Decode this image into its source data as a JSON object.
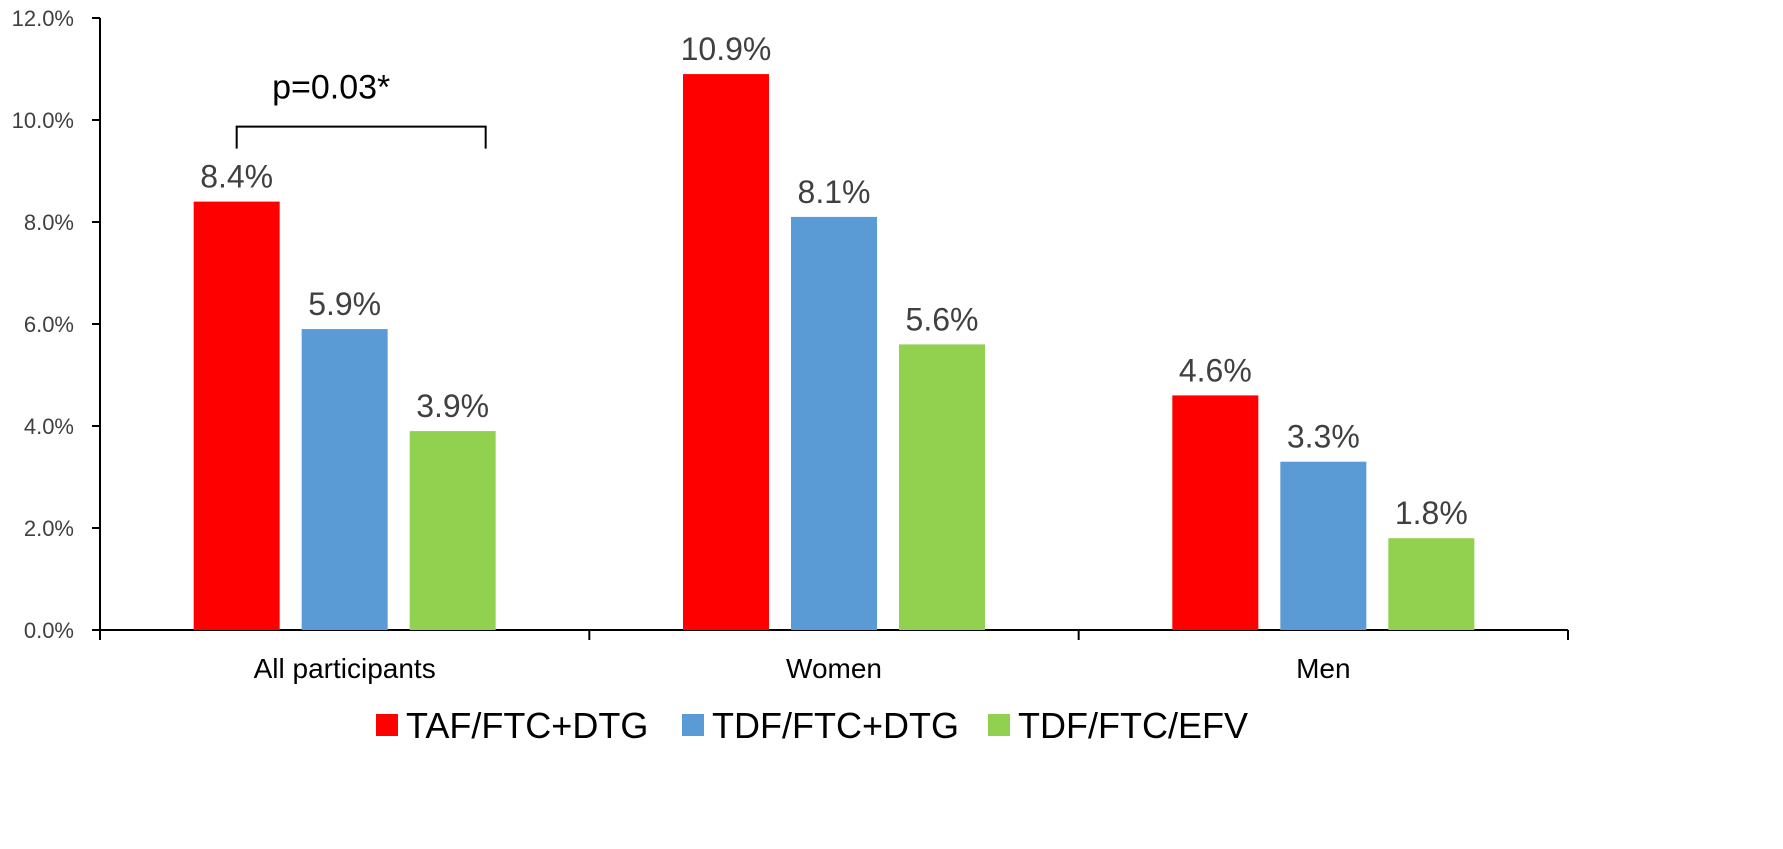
{
  "chart_data": {
    "type": "bar",
    "categories": [
      "All participants",
      "Women",
      "Men"
    ],
    "series": [
      {
        "name": "TAF/FTC+DTG",
        "color": "#ff0000",
        "values": [
          8.4,
          10.9,
          4.6
        ]
      },
      {
        "name": "TDF/FTC+DTG",
        "color": "#5b9bd5",
        "values": [
          5.9,
          8.1,
          3.3
        ]
      },
      {
        "name": "TDF/FTC/EFV",
        "color": "#92d050",
        "values": [
          3.9,
          5.6,
          1.8
        ]
      }
    ],
    "data_labels": [
      [
        "8.4%",
        "10.9%",
        "4.6%"
      ],
      [
        "5.9%",
        "8.1%",
        "3.3%"
      ],
      [
        "3.9%",
        "5.6%",
        "1.8%"
      ]
    ],
    "y_ticks": [
      0,
      2,
      4,
      6,
      8,
      10,
      12
    ],
    "y_tick_labels": [
      "0.0%",
      "2.0%",
      "4.0%",
      "6.0%",
      "8.0%",
      "10.0%",
      "12.0%"
    ],
    "ylim": [
      0,
      12
    ],
    "title": "",
    "xlabel": "",
    "ylabel": "",
    "grid": false,
    "legend_position": "bottom",
    "annotation": {
      "text": "p=0.03*",
      "category": "All participants",
      "from_series": 0,
      "to_series": 2
    }
  }
}
